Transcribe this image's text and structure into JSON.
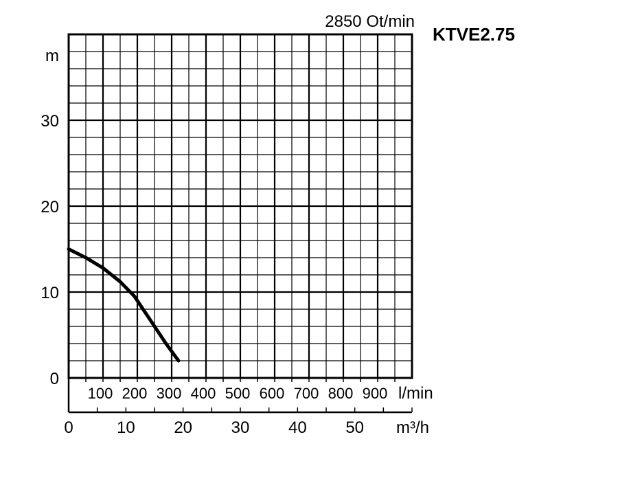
{
  "chart_data": {
    "type": "line",
    "title": "KTVE2.75",
    "subtitle": "2850 Ot/min",
    "ylabel": "m",
    "xlabel": "m³/h",
    "secondary_xlabel": "l/min",
    "ylim": [
      0,
      40
    ],
    "xlim": [
      0,
      60
    ],
    "secondary_xlim": [
      0,
      1000
    ],
    "y_ticks": [
      "0",
      "10",
      "20",
      "30"
    ],
    "x_ticks": [
      "0",
      "10",
      "20",
      "30",
      "40",
      "50"
    ],
    "secondary_x_ticks": [
      "100",
      "200",
      "300",
      "400",
      "500",
      "600",
      "700",
      "800",
      "900"
    ],
    "grid": true,
    "series": [
      {
        "x": [
          0,
          3,
          6,
          9,
          11.5,
          14,
          17,
          19.2
        ],
        "y": [
          15,
          14,
          12.8,
          11.2,
          9.5,
          7,
          4,
          2
        ]
      }
    ]
  }
}
